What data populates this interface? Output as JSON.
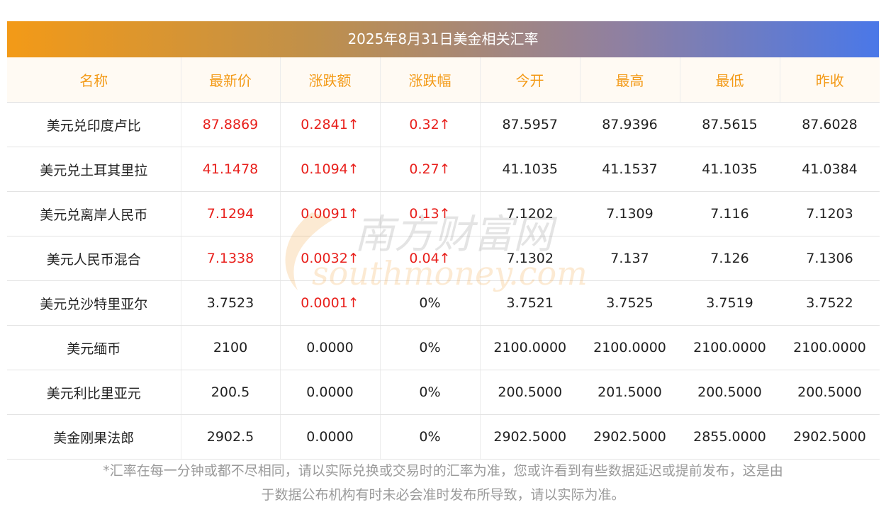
{
  "title": "2025年8月31日美金相关汇率",
  "columns": [
    "名称",
    "最新价",
    "涨跌额",
    "涨跌幅",
    "今开",
    "最高",
    "最低",
    "昨收"
  ],
  "rows": [
    {
      "name": "美元兑印度卢比",
      "latest": "87.8869",
      "change": "0.2841↑",
      "pct": "0.32↑",
      "open": "87.5957",
      "high": "87.9396",
      "low": "87.5615",
      "prev": "87.6028",
      "up": true,
      "pct_up": true
    },
    {
      "name": "美元兑土耳其里拉",
      "latest": "41.1478",
      "change": "0.1094↑",
      "pct": "0.27↑",
      "open": "41.1035",
      "high": "41.1537",
      "low": "41.1035",
      "prev": "41.0384",
      "up": true,
      "pct_up": true
    },
    {
      "name": "美元兑离岸人民币",
      "latest": "7.1294",
      "change": "0.0091↑",
      "pct": "0.13↑",
      "open": "7.1202",
      "high": "7.1309",
      "low": "7.116",
      "prev": "7.1203",
      "up": true,
      "pct_up": true
    },
    {
      "name": "美元人民币混合",
      "latest": "7.1338",
      "change": "0.0032↑",
      "pct": "0.04↑",
      "open": "7.1302",
      "high": "7.137",
      "low": "7.126",
      "prev": "7.1306",
      "up": true,
      "pct_up": true
    },
    {
      "name": "美元兑沙特里亚尔",
      "latest": "3.7523",
      "change": "0.0001↑",
      "pct": "0%",
      "open": "3.7521",
      "high": "3.7525",
      "low": "3.7519",
      "prev": "3.7522",
      "up": false,
      "change_up": true,
      "pct_up": false
    },
    {
      "name": "美元缅币",
      "latest": "2100",
      "change": "0.0000",
      "pct": "0%",
      "open": "2100.0000",
      "high": "2100.0000",
      "low": "2100.0000",
      "prev": "2100.0000",
      "up": false,
      "pct_up": false
    },
    {
      "name": "美元利比里亚元",
      "latest": "200.5",
      "change": "0.0000",
      "pct": "0%",
      "open": "200.5000",
      "high": "201.5000",
      "low": "200.5000",
      "prev": "200.5000",
      "up": false,
      "pct_up": false
    },
    {
      "name": "美金刚果法郎",
      "latest": "2902.5",
      "change": "0.0000",
      "pct": "0%",
      "open": "2902.5000",
      "high": "2902.5000",
      "low": "2855.0000",
      "prev": "2902.5000",
      "up": false,
      "pct_up": false
    }
  ],
  "note_line1": "*汇率在每一分钟或都不尽相同，请以实际兑换或交易时的汇率为准，您或许看到有些数据延迟或提前发布，这是由",
  "note_line2": "于数据公布机构有时未必会准时发布所导致，请以实际为准。",
  "watermark": {
    "cn": "南方财富网",
    "en": "southmoney.com"
  },
  "colors": {
    "accent": "#f39a17",
    "up": "#e8201c",
    "header_bg": "#fffaf3",
    "gradient_end": "#4a78e8"
  }
}
